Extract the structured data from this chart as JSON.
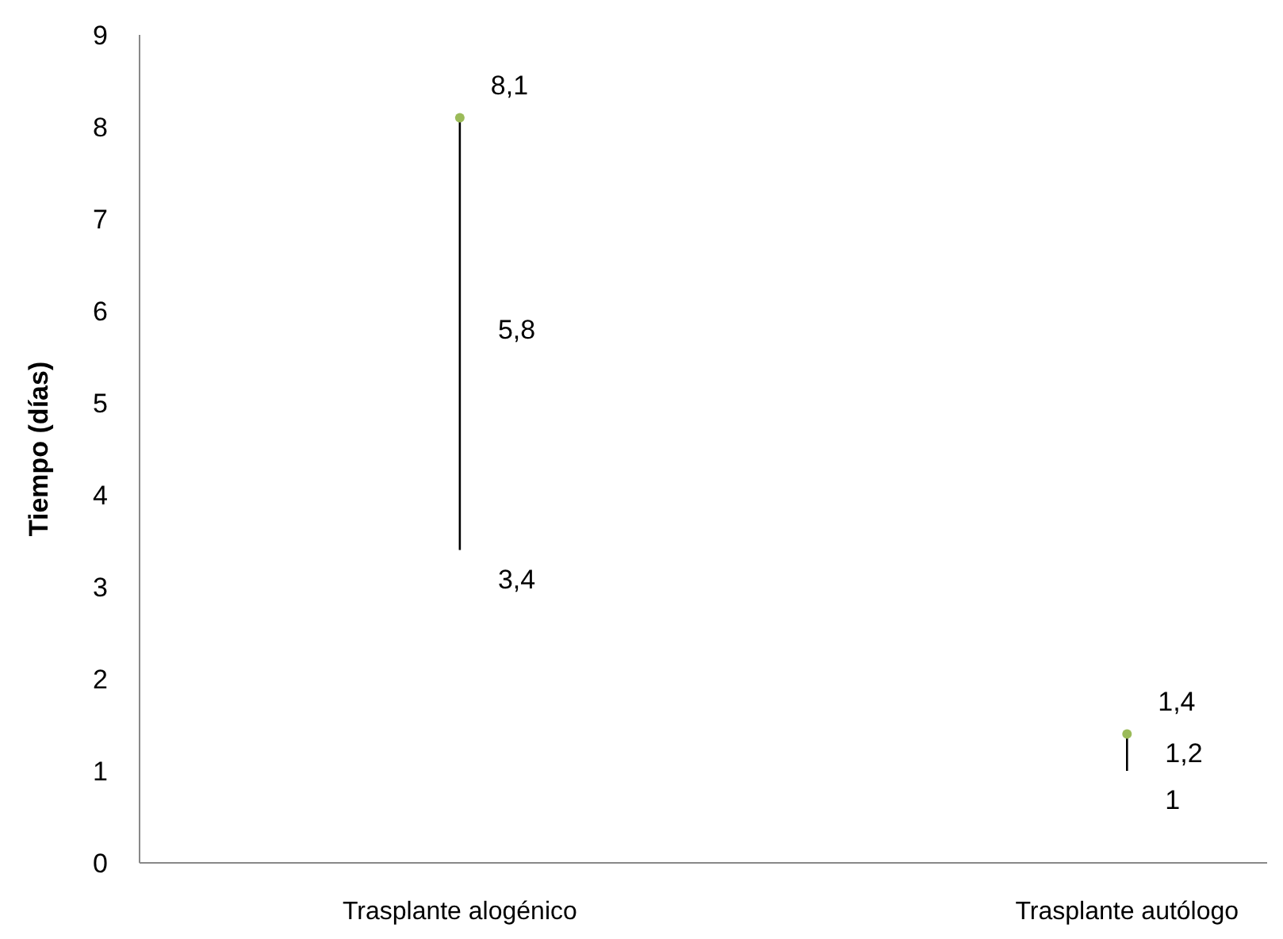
{
  "chart_data": {
    "type": "scatter",
    "categories": [
      "Trasplante alogénico",
      "Trasplante autólogo"
    ],
    "ylabel": "Tiempo (días)",
    "ylim": [
      0,
      9
    ],
    "yticks": [
      0,
      1,
      2,
      3,
      4,
      5,
      6,
      7,
      8,
      9
    ],
    "grid": false,
    "legend": false,
    "annotations": [
      {
        "text": "5,8",
        "x": "Trasplante alogénico",
        "y": 5.8
      },
      {
        "text": "1,2",
        "x": "Trasplante autólogo",
        "y": 1.2
      }
    ],
    "series": [
      {
        "type": "line",
        "color": "#000000",
        "marker": "none",
        "x": [
          "Trasplante alogénico",
          "Trasplante alogénico"
        ],
        "values": [
          3.4,
          8.1
        ],
        "value_labels": [
          "3,4",
          null
        ]
      },
      {
        "type": "line",
        "color": "#000000",
        "marker": "none",
        "x": [
          "Trasplante autólogo",
          "Trasplante autólogo"
        ],
        "values": [
          1,
          1.4
        ],
        "value_labels": [
          "1",
          null
        ]
      },
      {
        "color": "#9bbb59",
        "marker": "circle",
        "values": [
          8.1,
          1.4
        ],
        "value_labels": [
          "8,1",
          "1,4"
        ]
      }
    ]
  }
}
